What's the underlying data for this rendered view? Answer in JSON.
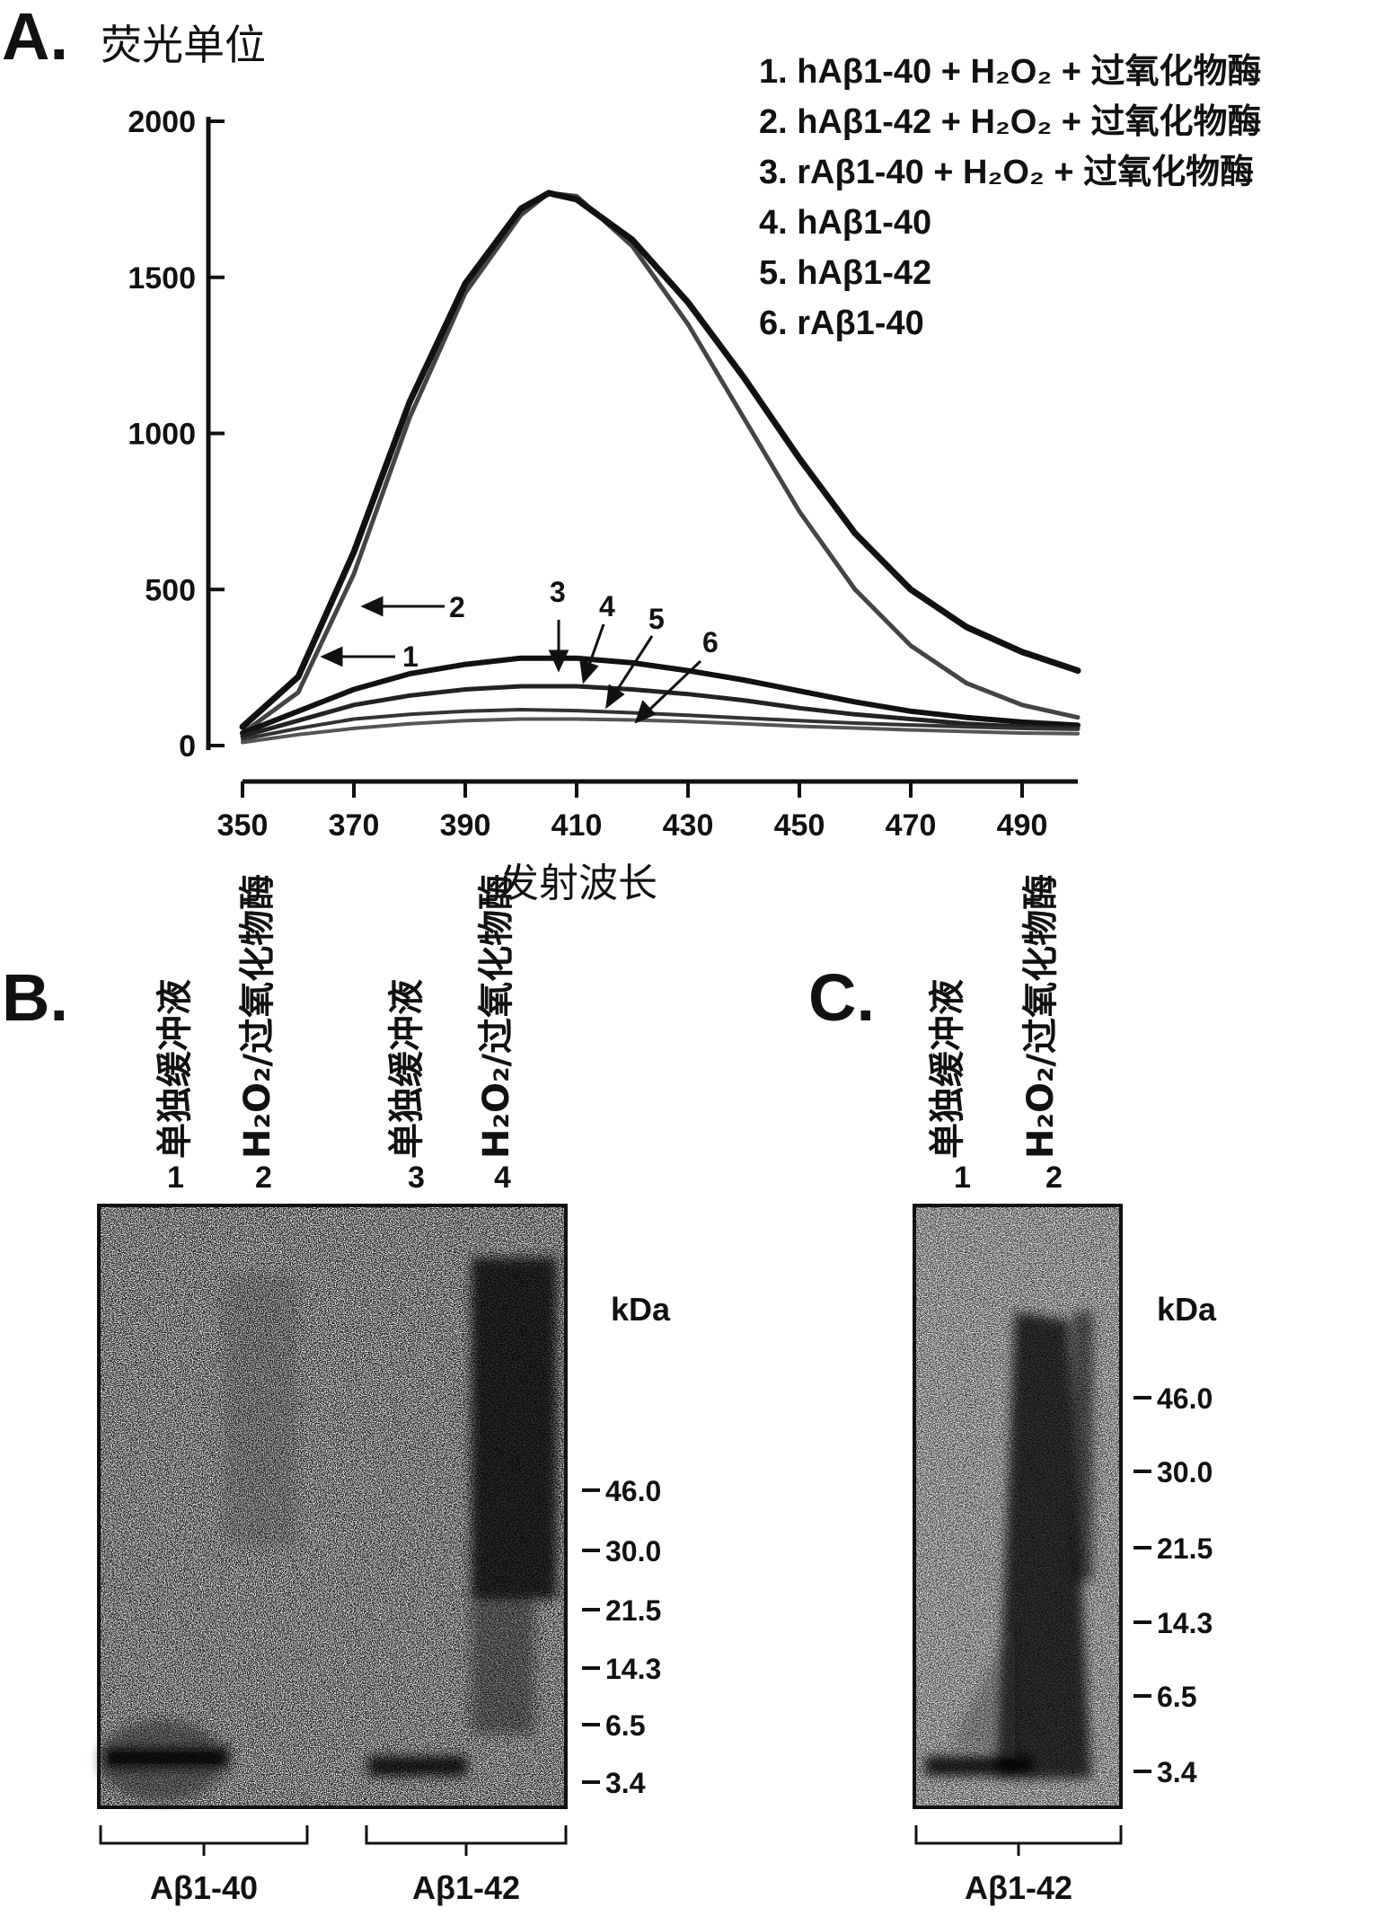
{
  "panel_a": {
    "letter": "A.",
    "ylabel": "荧光单位",
    "xlabel": "发射波长",
    "legend": [
      "1. hAβ1-40 + H₂O₂ + 过氧化物酶",
      "2. hAβ1-42 + H₂O₂ + 过氧化物酶",
      "3. rAβ1-40 + H₂O₂ + 过氧化物酶",
      "4. hAβ1-40",
      "5. hAβ1-42",
      "6. rAβ1-40"
    ],
    "curve_labels": [
      "1",
      "2",
      "3",
      "4",
      "5",
      "6"
    ]
  },
  "chart_data": {
    "type": "line",
    "xlabel": "发射波长",
    "ylabel": "荧光单位",
    "xlim": [
      350,
      500
    ],
    "ylim": [
      0,
      2000
    ],
    "xticks": [
      "350",
      "370",
      "390",
      "410",
      "430",
      "450",
      "470",
      "490"
    ],
    "yticks": [
      "0",
      "500",
      "1000",
      "1500",
      "2000"
    ],
    "grid": false,
    "legend_position": "top-right",
    "series": [
      {
        "name": "1. hAβ1-40 + H₂O₂ + 过氧化物酶",
        "x": [
          350,
          360,
          370,
          380,
          390,
          400,
          405,
          410,
          420,
          430,
          440,
          450,
          460,
          470,
          480,
          490,
          500
        ],
        "y": [
          40,
          170,
          550,
          1050,
          1450,
          1700,
          1770,
          1760,
          1600,
          1350,
          1050,
          750,
          500,
          320,
          200,
          130,
          90
        ]
      },
      {
        "name": "2. hAβ1-42 + H₂O₂ + 过氧化物酶",
        "x": [
          350,
          360,
          370,
          380,
          390,
          400,
          405,
          410,
          420,
          430,
          440,
          450,
          460,
          470,
          480,
          490,
          500
        ],
        "y": [
          60,
          220,
          620,
          1100,
          1480,
          1720,
          1770,
          1750,
          1620,
          1420,
          1180,
          920,
          680,
          500,
          380,
          300,
          240
        ]
      },
      {
        "name": "3. rAβ1-40 + H₂O₂ + 过氧化物酶",
        "x": [
          350,
          360,
          370,
          380,
          390,
          400,
          410,
          420,
          430,
          440,
          450,
          460,
          470,
          480,
          490,
          500
        ],
        "y": [
          40,
          110,
          180,
          230,
          260,
          280,
          280,
          265,
          240,
          210,
          175,
          140,
          110,
          90,
          75,
          65
        ]
      },
      {
        "name": "4. hAβ1-40",
        "x": [
          350,
          360,
          370,
          380,
          390,
          400,
          410,
          420,
          430,
          440,
          450,
          460,
          470,
          480,
          490,
          500
        ],
        "y": [
          30,
          80,
          130,
          160,
          180,
          190,
          190,
          180,
          165,
          145,
          120,
          100,
          85,
          70,
          60,
          55
        ]
      },
      {
        "name": "5. hAβ1-42",
        "x": [
          350,
          360,
          370,
          380,
          390,
          400,
          410,
          420,
          430,
          440,
          450,
          460,
          470,
          480,
          490,
          500
        ],
        "y": [
          20,
          55,
          85,
          100,
          110,
          115,
          112,
          105,
          97,
          88,
          80,
          72,
          66,
          60,
          55,
          52
        ]
      },
      {
        "name": "6. rAβ1-40",
        "x": [
          350,
          360,
          370,
          380,
          390,
          400,
          410,
          420,
          430,
          440,
          450,
          460,
          470,
          480,
          490,
          500
        ],
        "y": [
          10,
          35,
          55,
          70,
          80,
          85,
          85,
          82,
          77,
          70,
          62,
          56,
          50,
          45,
          40,
          38
        ]
      }
    ]
  },
  "panel_b": {
    "letter": "B.",
    "lanes": [
      {
        "num": "1",
        "label": "单独缓冲液"
      },
      {
        "num": "2",
        "label": "H₂O₂/过氧化物酶"
      },
      {
        "num": "3",
        "label": "单独缓冲液"
      },
      {
        "num": "4",
        "label": "H₂O₂/过氧化物酶"
      }
    ],
    "kda_label": "kDa",
    "markers": [
      "46.0",
      "30.0",
      "21.5",
      "14.3",
      "6.5",
      "3.4"
    ],
    "groups": [
      "Aβ1-40",
      "Aβ1-42"
    ]
  },
  "panel_c": {
    "letter": "C.",
    "lanes": [
      {
        "num": "1",
        "label": "单独缓冲液"
      },
      {
        "num": "2",
        "label": "H₂O₂/过氧化物酶"
      }
    ],
    "kda_label": "kDa",
    "markers": [
      "46.0",
      "30.0",
      "21.5",
      "14.3",
      "6.5",
      "3.4"
    ],
    "groups": [
      "Aβ1-42"
    ]
  }
}
